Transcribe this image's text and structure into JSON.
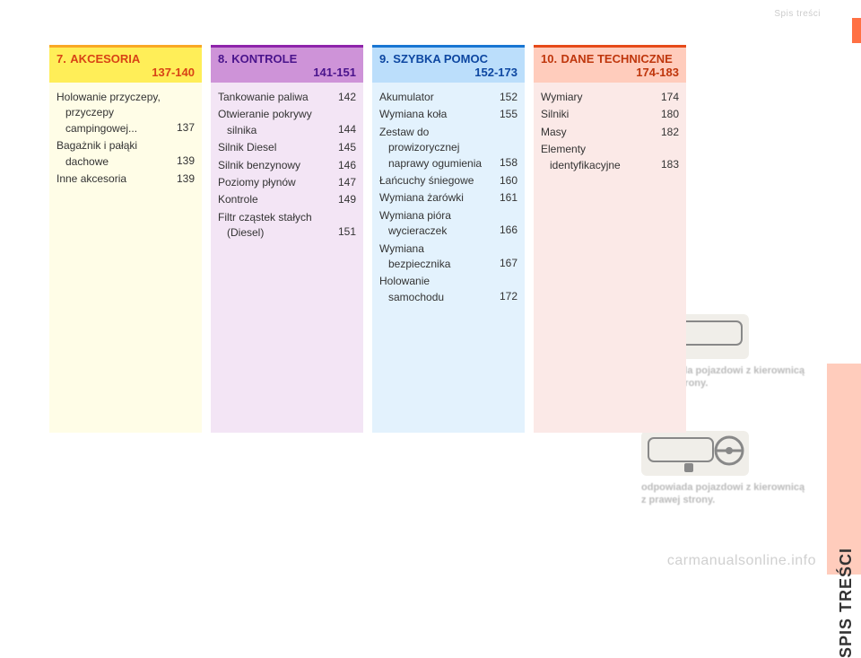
{
  "header_label": "Spis treści",
  "sections": [
    {
      "num": "7.",
      "title": "AKCESORIA",
      "range": "137-140",
      "entries": [
        {
          "label": "Holowanie przyczepy,",
          "sub": [
            "przyczepy",
            "campingowej..."
          ],
          "page": "137"
        },
        {
          "label": "Bagażnik i pałąki",
          "sub": [
            "dachowe"
          ],
          "page": "139"
        },
        {
          "label": "Inne akcesoria",
          "sub": [],
          "page": "139"
        }
      ]
    },
    {
      "num": "8.",
      "title": "KONTROLE",
      "range": "141-151",
      "entries": [
        {
          "label": "Tankowanie paliwa",
          "sub": [],
          "page": "142"
        },
        {
          "label": "Otwieranie pokrywy",
          "sub": [
            "silnika"
          ],
          "page": "144"
        },
        {
          "label": "Silnik Diesel",
          "sub": [],
          "page": "145"
        },
        {
          "label": "Silnik benzynowy",
          "sub": [],
          "page": "146"
        },
        {
          "label": "Poziomy płynów",
          "sub": [],
          "page": "147"
        },
        {
          "label": "Kontrole",
          "sub": [],
          "page": "149"
        },
        {
          "label": "Filtr cząstek stałych",
          "sub": [
            "(Diesel)"
          ],
          "page": "151"
        }
      ]
    },
    {
      "num": "9.",
      "title": "SZYBKA POMOC",
      "range": "152-173",
      "entries": [
        {
          "label": "Akumulator",
          "sub": [],
          "page": "152"
        },
        {
          "label": "Wymiana koła",
          "sub": [],
          "page": "155"
        },
        {
          "label": "Zestaw do",
          "sub": [
            "prowizorycznej",
            "naprawy ogumienia"
          ],
          "page": "158"
        },
        {
          "label": "Łańcuchy śniegowe",
          "sub": [],
          "page": "160"
        },
        {
          "label": "Wymiana żarówki",
          "sub": [],
          "page": "161"
        },
        {
          "label": "Wymiana pióra",
          "sub": [
            "wycieraczek"
          ],
          "page": "166"
        },
        {
          "label": "Wymiana",
          "sub": [
            "bezpiecznika"
          ],
          "page": "167"
        },
        {
          "label": "Holowanie",
          "sub": [
            "samochodu"
          ],
          "page": "172"
        }
      ]
    },
    {
      "num": "10.",
      "title": "DANE TECHNICZNE",
      "range": "174-183",
      "entries": [
        {
          "label": "Wymiary",
          "sub": [],
          "page": "174"
        },
        {
          "label": "Silniki",
          "sub": [],
          "page": "180"
        },
        {
          "label": "Masy",
          "sub": [],
          "page": "182"
        },
        {
          "label": "Elementy",
          "sub": [
            "identyfikacyjne"
          ],
          "page": "183"
        }
      ]
    }
  ],
  "picto1_caption": "odpowiada pojazdowi z kierownicą z lewej strony.",
  "picto2_caption": "odpowiada pojazdowi z kierownicą z prawej strony.",
  "side_tab": "SPIS TREŚCI",
  "watermark": "carmanualsonline.info",
  "colors": {
    "c7_header": "#ffee58",
    "c7_stripe": "#fffde7",
    "c7_border": "#f9a825",
    "c7_text": "#d84315",
    "c8_header": "#ce93d8",
    "c8_stripe": "#f3e5f5",
    "c8_border": "#8e24aa",
    "c8_text": "#4a148c",
    "c9_header": "#bbdefb",
    "c9_stripe": "#e3f2fd",
    "c9_border": "#1976d2",
    "c9_text": "#0d47a1",
    "c10_header": "#ffccbc",
    "c10_stripe": "#fbe9e7",
    "c10_border": "#e64a19",
    "c10_text": "#bf360c",
    "sidebar": "#ffccbc",
    "sidebar_tick": "#ff7043"
  }
}
